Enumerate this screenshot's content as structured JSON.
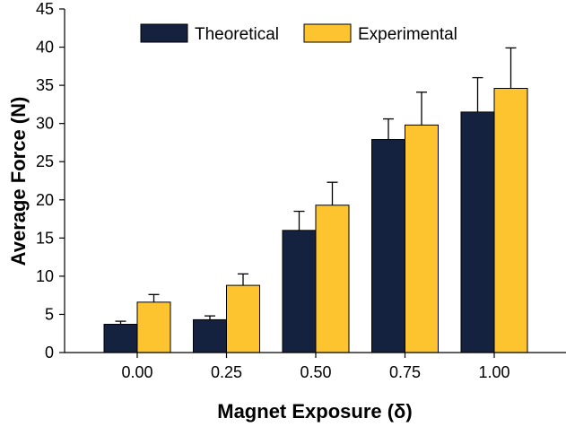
{
  "chart_data": {
    "type": "bar",
    "title": "",
    "xlabel": "Magnet Exposure (δ)",
    "ylabel": "Average Force (N)",
    "categories": [
      "0.00",
      "0.25",
      "0.50",
      "0.75",
      "1.00"
    ],
    "ylim": [
      0,
      45
    ],
    "yticks": [
      "0",
      "5",
      "10",
      "15",
      "20",
      "25",
      "30",
      "35",
      "40",
      "45"
    ],
    "grid": false,
    "legend_position": "top",
    "series": [
      {
        "name": "Theoretical",
        "color": "#14213f",
        "values": [
          3.7,
          4.3,
          16.0,
          27.9,
          31.5
        ],
        "errors": [
          0.4,
          0.5,
          2.5,
          2.7,
          4.5
        ]
      },
      {
        "name": "Experimental",
        "color": "#fec42f",
        "values": [
          6.6,
          8.8,
          19.3,
          29.8,
          34.6
        ],
        "errors": [
          1.0,
          1.5,
          3.0,
          4.3,
          5.3
        ]
      }
    ]
  }
}
